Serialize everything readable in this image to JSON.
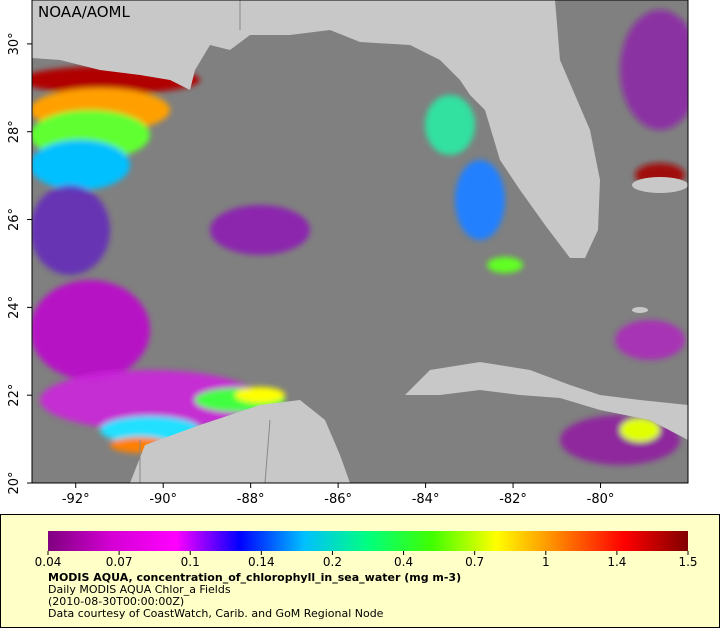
{
  "map": {
    "credit": "NOAA/AOML",
    "xlim": [
      -93,
      -78
    ],
    "ylim": [
      20,
      31
    ],
    "xticks": [
      {
        "value": -92,
        "label": "-92°"
      },
      {
        "value": -90,
        "label": "-90°"
      },
      {
        "value": -88,
        "label": "-88°"
      },
      {
        "value": -86,
        "label": "-86°"
      },
      {
        "value": -84,
        "label": "-84°"
      },
      {
        "value": -82,
        "label": "-82°"
      },
      {
        "value": -80,
        "label": "-80°"
      }
    ],
    "yticks": [
      {
        "value": 20,
        "label": "20°"
      },
      {
        "value": 22,
        "label": "22°"
      },
      {
        "value": 24,
        "label": "24°"
      },
      {
        "value": 26,
        "label": "26°"
      },
      {
        "value": 28,
        "label": "28°"
      },
      {
        "value": 30,
        "label": "30°"
      }
    ],
    "colorbar": {
      "ticks": [
        0.04,
        0.07,
        0.1,
        0.14,
        0.2,
        0.4,
        0.7,
        1,
        1.4,
        1.5
      ],
      "colors": [
        "#7f007f",
        "#d400d4",
        "#ff00ff",
        "#0000ff",
        "#00bfff",
        "#00ff7f",
        "#40ff00",
        "#ffff00",
        "#ff8000",
        "#ff0000",
        "#800000"
      ]
    },
    "legend": {
      "title": "MODIS AQUA, concentration_of_chlorophyll_in_sea_water (mg m-3)",
      "lines": [
        "Daily MODIS AQUA Chlor_a Fields",
        "(2010-08-30T00:00:00Z)",
        "Data courtesy of CoastWatch, Carib. and GoM Regional Node"
      ]
    }
  }
}
